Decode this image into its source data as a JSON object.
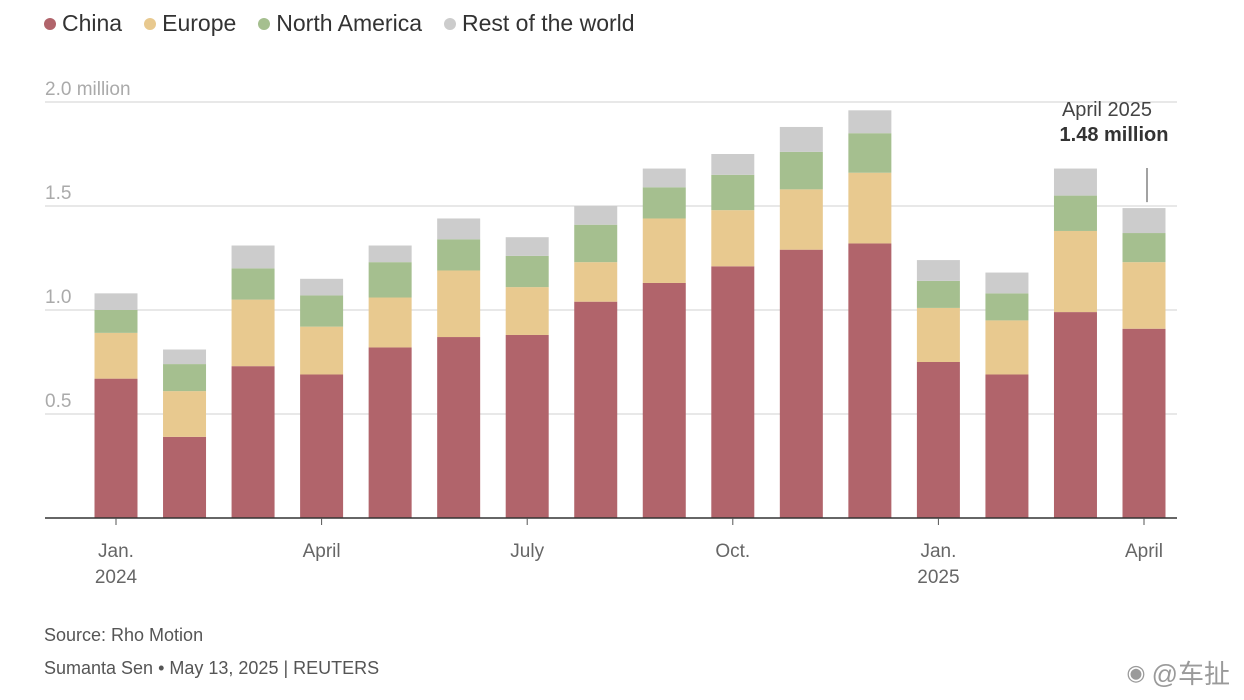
{
  "legend": [
    {
      "label": "China",
      "color": "#b1646b"
    },
    {
      "label": "Europe",
      "color": "#e8c98f"
    },
    {
      "label": "North America",
      "color": "#a5bf8f"
    },
    {
      "label": "Rest of the world",
      "color": "#cccccc"
    }
  ],
  "chart_data": {
    "type": "bar",
    "stacked": true,
    "categories": [
      "Jan. 2024",
      "Feb. 2024",
      "Mar. 2024",
      "Apr. 2024",
      "May 2024",
      "Jun. 2024",
      "Jul. 2024",
      "Aug. 2024",
      "Sep. 2024",
      "Oct. 2024",
      "Nov. 2024",
      "Dec. 2024",
      "Jan. 2025",
      "Feb. 2025",
      "Mar. 2025",
      "Apr. 2025"
    ],
    "series": [
      {
        "name": "China",
        "color": "#b1646b",
        "values": [
          0.67,
          0.39,
          0.73,
          0.69,
          0.82,
          0.87,
          0.88,
          1.04,
          1.13,
          1.21,
          1.29,
          1.32,
          0.75,
          0.69,
          0.99,
          0.91
        ]
      },
      {
        "name": "Europe",
        "color": "#e8c98f",
        "values": [
          0.22,
          0.22,
          0.32,
          0.23,
          0.24,
          0.32,
          0.23,
          0.19,
          0.31,
          0.27,
          0.29,
          0.34,
          0.26,
          0.26,
          0.39,
          0.32
        ]
      },
      {
        "name": "North America",
        "color": "#a5bf8f",
        "values": [
          0.11,
          0.13,
          0.15,
          0.15,
          0.17,
          0.15,
          0.15,
          0.18,
          0.15,
          0.17,
          0.18,
          0.19,
          0.13,
          0.13,
          0.17,
          0.14
        ]
      },
      {
        "name": "Rest of the world",
        "color": "#cccccc",
        "values": [
          0.08,
          0.07,
          0.11,
          0.08,
          0.08,
          0.1,
          0.09,
          0.09,
          0.09,
          0.1,
          0.12,
          0.11,
          0.1,
          0.1,
          0.13,
          0.12
        ]
      }
    ],
    "y_ticks": [
      {
        "value": 0.5,
        "label": "0.5"
      },
      {
        "value": 1.0,
        "label": "1.0"
      },
      {
        "value": 1.5,
        "label": "1.5"
      },
      {
        "value": 2.0,
        "label": "2.0 million"
      }
    ],
    "ylim": [
      0,
      2.0
    ],
    "x_tick_labels": [
      {
        "index": 0,
        "lines": [
          "Jan.",
          "2024"
        ]
      },
      {
        "index": 3,
        "lines": [
          "April"
        ]
      },
      {
        "index": 6,
        "lines": [
          "July"
        ]
      },
      {
        "index": 9,
        "lines": [
          "Oct."
        ]
      },
      {
        "index": 12,
        "lines": [
          "Jan.",
          "2025"
        ]
      },
      {
        "index": 15,
        "lines": [
          "April"
        ]
      }
    ],
    "annotation": {
      "index": 15,
      "line1": "April 2025",
      "line2": "1.48 million"
    },
    "grid": true
  },
  "footer": {
    "source": "Source: Rho Motion",
    "byline": "Sumanta Sen • May 13, 2025 | REUTERS"
  },
  "watermark": {
    "text": "@车扯",
    "icon": "weibo-icon"
  }
}
